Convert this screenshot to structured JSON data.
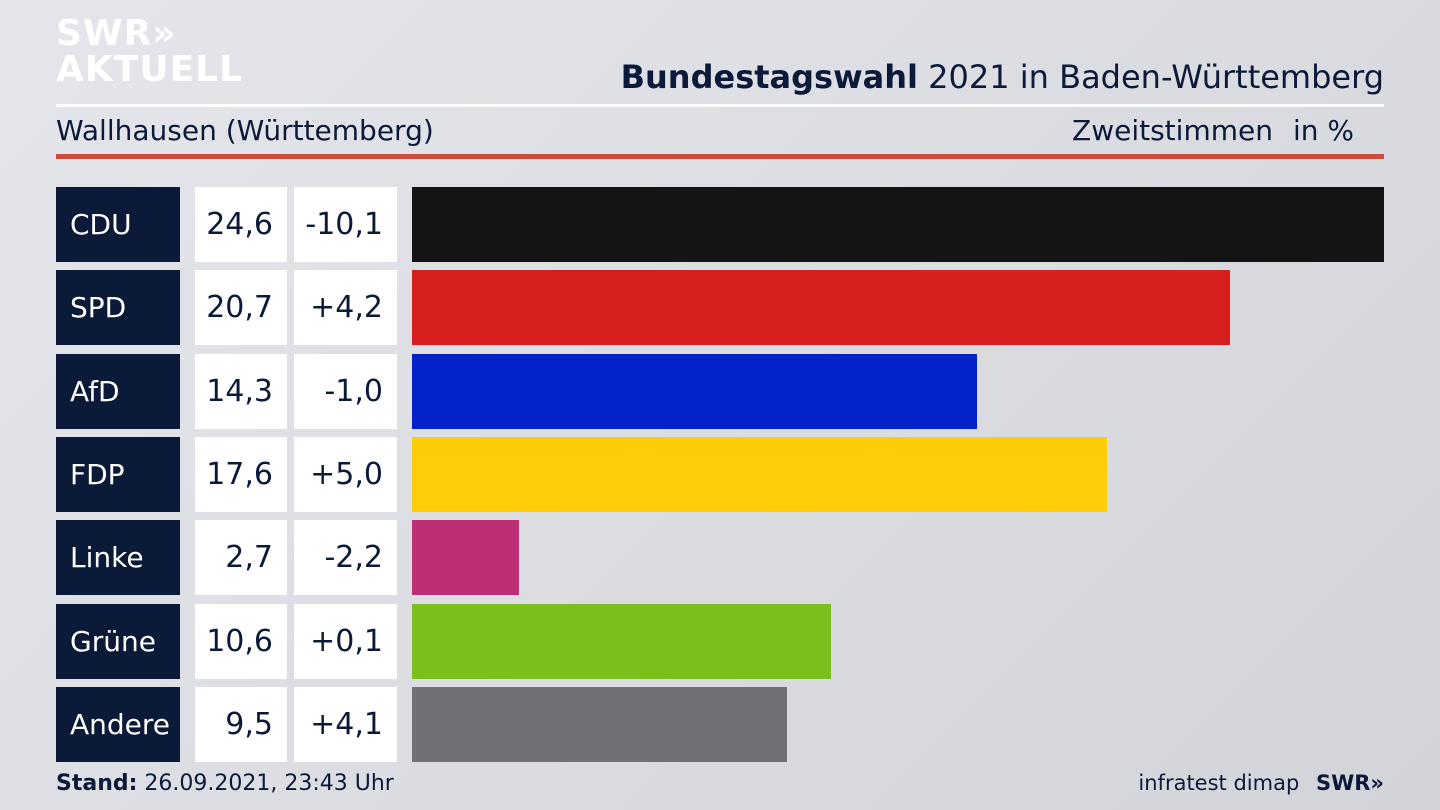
{
  "branding": {
    "logo_line1": "SWR»",
    "logo_line2": "AKTUELL",
    "footer_logo": "SWR»"
  },
  "header": {
    "title_bold": "Bundestagswahl",
    "title_rest": "2021 in Baden-Württemberg",
    "subtitle": "Wallhausen (Württemberg)",
    "vote_type": "Zweitstimmen",
    "unit": "in %"
  },
  "footer": {
    "stand_label": "Stand:",
    "stand_value": "26.09.2021, 23:43 Uhr",
    "source": "infratest dimap"
  },
  "chart_data": {
    "type": "bar",
    "orientation": "horizontal",
    "categories": [
      "CDU",
      "SPD",
      "AfD",
      "FDP",
      "Linke",
      "Grüne",
      "Andere"
    ],
    "values": [
      24.6,
      20.7,
      14.3,
      17.6,
      2.7,
      10.6,
      9.5
    ],
    "values_display": [
      "24,6",
      "20,7",
      "14,3",
      "17,6",
      "2,7",
      "10,6",
      "9,5"
    ],
    "changes_display": [
      "-10,1",
      "+4,2",
      "-1,0",
      "+5,0",
      "-2,2",
      "+0,1",
      "+4,1"
    ],
    "colors": [
      "#141414",
      "#d81f20",
      "#0223c9",
      "#ffcc08",
      "#bc2f75",
      "#7abf1a",
      "#717175"
    ],
    "xlim": [
      0,
      24.6
    ]
  }
}
